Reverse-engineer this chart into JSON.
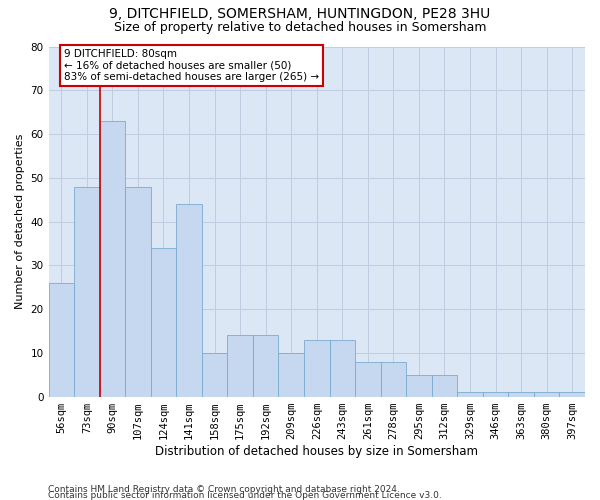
{
  "title1": "9, DITCHFIELD, SOMERSHAM, HUNTINGDON, PE28 3HU",
  "title2": "Size of property relative to detached houses in Somersham",
  "xlabel": "Distribution of detached houses by size in Somersham",
  "ylabel": "Number of detached properties",
  "categories": [
    "56sqm",
    "73sqm",
    "90sqm",
    "107sqm",
    "124sqm",
    "141sqm",
    "158sqm",
    "175sqm",
    "192sqm",
    "209sqm",
    "226sqm",
    "243sqm",
    "261sqm",
    "278sqm",
    "295sqm",
    "312sqm",
    "329sqm",
    "346sqm",
    "363sqm",
    "380sqm",
    "397sqm"
  ],
  "values": [
    26,
    48,
    63,
    48,
    34,
    44,
    10,
    14,
    14,
    10,
    13,
    13,
    8,
    8,
    5,
    5,
    1,
    1,
    1,
    1,
    1
  ],
  "bar_color": "#c5d8f0",
  "bar_edge_color": "#7aabcf",
  "vline_color": "#cc0000",
  "vline_x": 1.5,
  "annotation_line1": "9 DITCHFIELD: 80sqm",
  "annotation_line2": "← 16% of detached houses are smaller (50)",
  "annotation_line3": "83% of semi-detached houses are larger (265) →",
  "annotation_box_facecolor": "#ffffff",
  "annotation_box_edgecolor": "#cc0000",
  "ylim_max": 80,
  "yticks": [
    0,
    10,
    20,
    30,
    40,
    50,
    60,
    70,
    80
  ],
  "grid_color": "#c0cce0",
  "plot_bg_color": "#dce7f5",
  "footer_line1": "Contains HM Land Registry data © Crown copyright and database right 2024.",
  "footer_line2": "Contains public sector information licensed under the Open Government Licence v3.0.",
  "title1_fontsize": 10,
  "title2_fontsize": 9,
  "xlabel_fontsize": 8.5,
  "ylabel_fontsize": 8,
  "tick_fontsize": 7.5,
  "annotation_fontsize": 7.5,
  "footer_fontsize": 6.5
}
